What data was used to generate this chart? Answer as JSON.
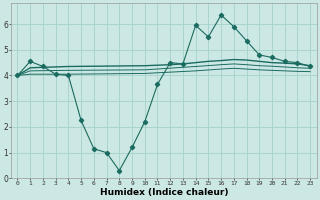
{
  "xlabel": "Humidex (Indice chaleur)",
  "bg_color": "#cce8e4",
  "grid_color": "#aad4ce",
  "line_color": "#1a6b60",
  "xlim": [
    -0.5,
    23.5
  ],
  "ylim": [
    0,
    6.8
  ],
  "yticks": [
    0,
    1,
    2,
    3,
    4,
    5,
    6
  ],
  "xticks": [
    0,
    1,
    2,
    3,
    4,
    5,
    6,
    7,
    8,
    9,
    10,
    11,
    12,
    13,
    14,
    15,
    16,
    17,
    18,
    19,
    20,
    21,
    22,
    23
  ],
  "series_jagged": {
    "x": [
      0,
      1,
      2,
      3,
      4,
      5,
      6,
      7,
      8,
      9,
      10,
      11,
      12,
      13,
      14,
      15,
      16,
      17,
      18,
      19,
      20,
      21,
      22,
      23
    ],
    "y": [
      4.0,
      4.55,
      4.35,
      4.05,
      4.0,
      2.25,
      1.15,
      1.0,
      0.3,
      1.2,
      2.2,
      3.65,
      4.5,
      4.45,
      5.95,
      5.5,
      6.35,
      5.9,
      5.35,
      4.8,
      4.7,
      4.55,
      4.5,
      4.35
    ]
  },
  "series_flat1": {
    "x": [
      0,
      1,
      4,
      10,
      11,
      12,
      13,
      14,
      15,
      16,
      17,
      18,
      19,
      20,
      21,
      22,
      23
    ],
    "y": [
      4.0,
      4.3,
      4.35,
      4.38,
      4.4,
      4.42,
      4.45,
      4.5,
      4.55,
      4.58,
      4.62,
      4.6,
      4.55,
      4.5,
      4.48,
      4.45,
      4.38
    ]
  },
  "series_flat2": {
    "x": [
      0,
      1,
      4,
      10,
      14,
      16,
      17,
      18,
      19,
      20,
      21,
      22,
      23
    ],
    "y": [
      4.0,
      4.05,
      4.05,
      4.08,
      4.18,
      4.25,
      4.28,
      4.25,
      4.22,
      4.2,
      4.18,
      4.16,
      4.15
    ]
  },
  "series_flat3": {
    "x": [
      0,
      1,
      4,
      10,
      14,
      16,
      17,
      18,
      19,
      20,
      21,
      22,
      23
    ],
    "y": [
      4.0,
      4.18,
      4.2,
      4.22,
      4.35,
      4.42,
      4.45,
      4.42,
      4.38,
      4.36,
      4.33,
      4.3,
      4.28
    ]
  }
}
